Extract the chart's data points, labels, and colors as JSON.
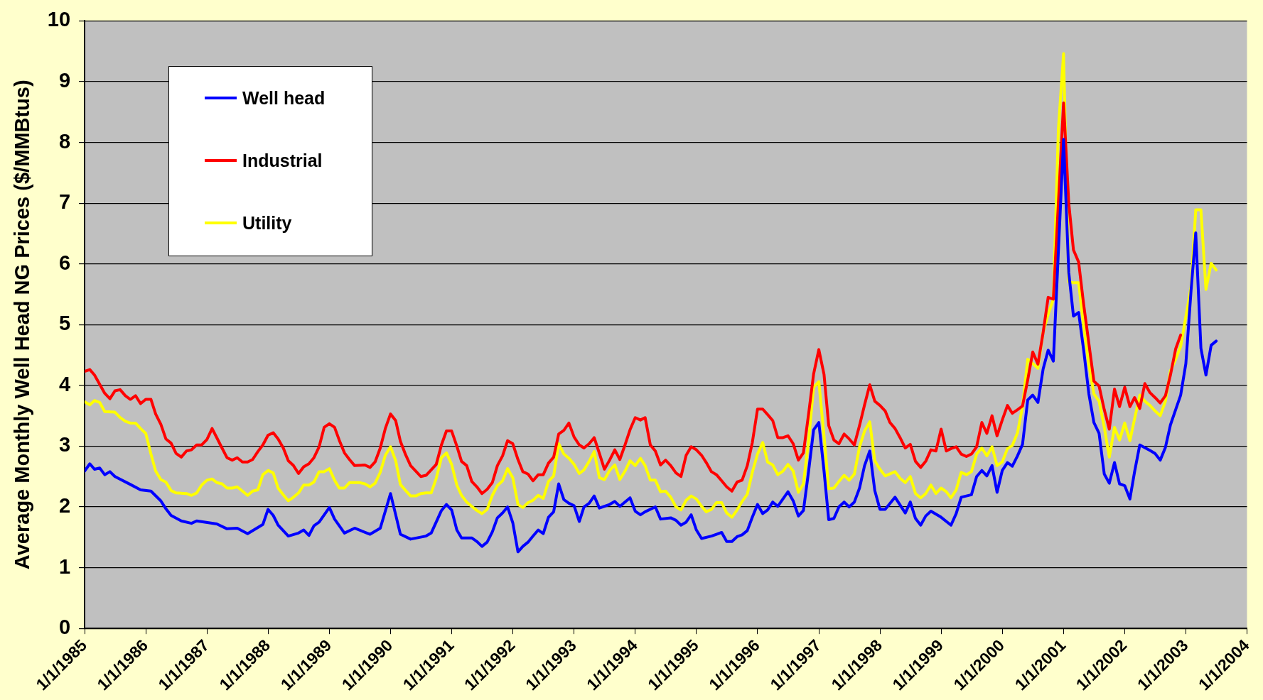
{
  "chart_data": {
    "type": "line",
    "ylabel": "Average Monthly Well Head NG Prices ($/MMBtus)",
    "xlim": [
      "1985-01-01",
      "2004-01-01"
    ],
    "xticks": [
      {
        "value": "1985-01-01",
        "label": "1/1/1985"
      },
      {
        "value": "1986-01-01",
        "label": "1/1/1986"
      },
      {
        "value": "1987-01-01",
        "label": "1/1/1987"
      },
      {
        "value": "1988-01-01",
        "label": "1/1/1988"
      },
      {
        "value": "1989-01-01",
        "label": "1/1/1989"
      },
      {
        "value": "1990-01-01",
        "label": "1/1/1990"
      },
      {
        "value": "1991-01-01",
        "label": "1/1/1991"
      },
      {
        "value": "1992-01-01",
        "label": "1/1/1992"
      },
      {
        "value": "1993-01-01",
        "label": "1/1/1993"
      },
      {
        "value": "1994-01-01",
        "label": "1/1/1994"
      },
      {
        "value": "1995-01-01",
        "label": "1/1/1995"
      },
      {
        "value": "1996-01-01",
        "label": "1/1/1996"
      },
      {
        "value": "1997-01-01",
        "label": "1/1/1997"
      },
      {
        "value": "1998-01-01",
        "label": "1/1/1998"
      },
      {
        "value": "1999-01-01",
        "label": "1/1/1999"
      },
      {
        "value": "2000-01-01",
        "label": "1/1/2000"
      },
      {
        "value": "2001-01-01",
        "label": "1/1/2001"
      },
      {
        "value": "2002-01-01",
        "label": "1/1/2002"
      },
      {
        "value": "2003-01-01",
        "label": "1/1/2003"
      },
      {
        "value": "2004-01-01",
        "label": "1/1/2004"
      }
    ],
    "ylim": [
      0,
      10
    ],
    "yticks": [
      0,
      1,
      2,
      3,
      4,
      5,
      6,
      7,
      8,
      9,
      10
    ],
    "grid": "y",
    "legend": "top left",
    "series": [
      {
        "name": "Well head",
        "color": "#0000ff",
        "x": [
          "1985-01",
          "1985-02",
          "1985-03",
          "1985-04",
          "1985-05",
          "1985-06",
          "1985-07",
          "1985-10",
          "1985-12",
          "1986-02",
          "1986-04",
          "1986-05",
          "1986-06",
          "1986-08",
          "1986-10",
          "1986-11",
          "1987-03",
          "1987-05",
          "1987-07",
          "1987-09",
          "1987-12",
          "1988-01",
          "1988-02",
          "1988-03",
          "1988-05",
          "1988-07",
          "1988-08",
          "1988-09",
          "1988-10",
          "1988-11",
          "1989-01",
          "1989-02",
          "1989-04",
          "1989-06",
          "1989-09",
          "1989-11",
          "1990-01",
          "1990-02",
          "1990-03",
          "1990-05",
          "1990-08",
          "1990-09",
          "1990-11",
          "1990-12",
          "1991-01",
          "1991-02",
          "1991-03",
          "1991-05",
          "1991-06",
          "1991-07",
          "1991-08",
          "1991-09",
          "1991-10",
          "1991-11",
          "1991-12",
          "1992-01",
          "1992-02",
          "1992-03",
          "1992-04",
          "1992-05",
          "1992-06",
          "1992-07",
          "1992-08",
          "1992-09",
          "1992-10",
          "1992-11",
          "1992-12",
          "1993-01",
          "1993-02",
          "1993-03",
          "1993-04",
          "1993-05",
          "1993-06",
          "1993-08",
          "1993-09",
          "1993-10",
          "1993-12",
          "1994-01",
          "1994-02",
          "1994-03",
          "1994-05",
          "1994-06",
          "1994-08",
          "1994-09",
          "1994-10",
          "1994-11",
          "1994-12",
          "1995-01",
          "1995-02",
          "1995-04",
          "1995-05",
          "1995-06",
          "1995-07",
          "1995-08",
          "1995-09",
          "1995-10",
          "1995-11",
          "1995-12",
          "1996-01",
          "1996-02",
          "1996-03",
          "1996-04",
          "1996-05",
          "1996-07",
          "1996-08",
          "1996-09",
          "1996-10",
          "1996-11",
          "1996-12",
          "1997-01",
          "1997-02",
          "1997-03",
          "1997-04",
          "1997-05",
          "1997-06",
          "1997-07",
          "1997-08",
          "1997-09",
          "1997-10",
          "1997-11",
          "1997-12",
          "1998-01",
          "1998-02",
          "1998-04",
          "1998-06",
          "1998-07",
          "1998-08",
          "1998-09",
          "1998-10",
          "1998-11",
          "1999-01",
          "1999-03",
          "1999-04",
          "1999-05",
          "1999-07",
          "1999-08",
          "1999-09",
          "1999-10",
          "1999-11",
          "1999-12",
          "2000-01",
          "2000-02",
          "2000-03",
          "2000-04",
          "2000-05",
          "2000-06",
          "2000-07",
          "2000-08",
          "2000-09",
          "2000-10",
          "2000-11",
          "2000-12",
          "2001-01",
          "2001-02",
          "2001-03",
          "2001-04",
          "2001-05",
          "2001-06",
          "2001-07",
          "2001-08",
          "2001-09",
          "2001-10",
          "2001-11",
          "2001-12",
          "2002-01",
          "2002-02",
          "2002-03",
          "2002-04",
          "2002-06",
          "2002-07",
          "2002-08",
          "2002-09",
          "2002-10",
          "2002-11",
          "2002-12",
          "2003-01",
          "2003-02",
          "2003-03",
          "2003-04",
          "2003-05",
          "2003-06",
          "2003-07"
        ],
        "values": [
          2.59,
          2.71,
          2.62,
          2.64,
          2.53,
          2.58,
          2.5,
          2.37,
          2.28,
          2.26,
          2.1,
          1.97,
          1.86,
          1.77,
          1.73,
          1.77,
          1.72,
          1.64,
          1.65,
          1.56,
          1.71,
          1.96,
          1.86,
          1.7,
          1.52,
          1.57,
          1.62,
          1.53,
          1.69,
          1.75,
          1.99,
          1.8,
          1.57,
          1.65,
          1.55,
          1.65,
          2.22,
          1.87,
          1.55,
          1.47,
          1.52,
          1.57,
          1.94,
          2.04,
          1.95,
          1.62,
          1.49,
          1.49,
          1.43,
          1.35,
          1.42,
          1.59,
          1.82,
          1.9,
          2.0,
          1.74,
          1.26,
          1.35,
          1.42,
          1.52,
          1.62,
          1.56,
          1.83,
          1.92,
          2.38,
          2.12,
          2.06,
          2.02,
          1.76,
          2.0,
          2.06,
          2.18,
          1.98,
          2.04,
          2.09,
          2.01,
          2.15,
          1.93,
          1.87,
          1.92,
          2.0,
          1.8,
          1.82,
          1.78,
          1.7,
          1.75,
          1.87,
          1.62,
          1.48,
          1.52,
          1.55,
          1.58,
          1.43,
          1.43,
          1.51,
          1.54,
          1.61,
          1.83,
          2.04,
          1.89,
          1.95,
          2.08,
          2.01,
          2.25,
          2.1,
          1.85,
          1.94,
          2.59,
          3.27,
          3.39,
          2.59,
          1.79,
          1.81,
          2.0,
          2.08,
          2.0,
          2.08,
          2.31,
          2.68,
          2.92,
          2.27,
          1.96,
          1.96,
          2.16,
          1.9,
          2.08,
          1.81,
          1.7,
          1.85,
          1.93,
          1.83,
          1.7,
          1.89,
          2.16,
          2.2,
          2.5,
          2.6,
          2.51,
          2.68,
          2.24,
          2.6,
          2.73,
          2.67,
          2.84,
          3.03,
          3.76,
          3.84,
          3.72,
          4.27,
          4.58,
          4.4,
          6.2,
          8.05,
          5.86,
          5.14,
          5.2,
          4.58,
          3.86,
          3.39,
          3.21,
          2.54,
          2.39,
          2.73,
          2.38,
          2.35,
          2.13,
          2.58,
          3.02,
          2.93,
          2.88,
          2.77,
          2.98,
          3.35,
          3.6,
          3.84,
          4.36,
          5.56,
          6.51,
          4.61,
          4.17,
          4.66,
          4.73
        ]
      },
      {
        "name": "Industrial",
        "color": "#ff0000",
        "x": [
          "1985-01",
          "1985-02",
          "1985-03",
          "1985-05",
          "1985-06",
          "1985-07",
          "1985-08",
          "1985-09",
          "1985-10",
          "1985-11",
          "1985-12",
          "1986-01",
          "1986-02",
          "1986-03",
          "1986-04",
          "1986-05",
          "1986-06",
          "1986-07",
          "1986-08",
          "1986-09",
          "1986-10",
          "1986-11",
          "1986-12",
          "1987-01",
          "1987-02",
          "1987-03",
          "1987-04",
          "1987-05",
          "1987-06",
          "1987-07",
          "1987-08",
          "1987-09",
          "1987-10",
          "1987-11",
          "1987-12",
          "1988-01",
          "1988-02",
          "1988-03",
          "1988-04",
          "1988-05",
          "1988-06",
          "1988-07",
          "1988-08",
          "1988-09",
          "1988-10",
          "1988-11",
          "1988-12",
          "1989-01",
          "1989-02",
          "1989-03",
          "1989-04",
          "1989-05",
          "1989-06",
          "1989-08",
          "1989-09",
          "1989-10",
          "1989-11",
          "1989-12",
          "1990-01",
          "1990-02",
          "1990-03",
          "1990-04",
          "1990-05",
          "1990-06",
          "1990-07",
          "1990-08",
          "1990-09",
          "1990-10",
          "1990-11",
          "1990-12",
          "1991-01",
          "1991-02",
          "1991-03",
          "1991-04",
          "1991-05",
          "1991-06",
          "1991-07",
          "1991-08",
          "1991-09",
          "1991-10",
          "1991-11",
          "1991-12",
          "1992-01",
          "1992-02",
          "1992-03",
          "1992-04",
          "1992-05",
          "1992-06",
          "1992-07",
          "1992-08",
          "1992-09",
          "1992-10",
          "1992-11",
          "1992-12",
          "1993-01",
          "1993-02",
          "1993-03",
          "1993-04",
          "1993-05",
          "1993-06",
          "1993-07",
          "1993-08",
          "1993-09",
          "1993-10",
          "1993-11",
          "1993-12",
          "1994-01",
          "1994-02",
          "1994-03",
          "1994-04",
          "1994-05",
          "1994-06",
          "1994-07",
          "1994-08",
          "1994-09",
          "1994-10",
          "1994-11",
          "1994-12",
          "1995-01",
          "1995-02",
          "1995-03",
          "1995-04",
          "1995-05",
          "1995-06",
          "1995-07",
          "1995-08",
          "1995-09",
          "1995-10",
          "1995-11",
          "1995-12",
          "1996-01",
          "1996-02",
          "1996-03",
          "1996-04",
          "1996-05",
          "1996-06",
          "1996-07",
          "1996-08",
          "1996-09",
          "1996-10",
          "1996-11",
          "1996-12",
          "1997-01",
          "1997-02",
          "1997-03",
          "1997-04",
          "1997-05",
          "1997-06",
          "1997-07",
          "1997-08",
          "1997-09",
          "1997-10",
          "1997-11",
          "1997-12",
          "1998-01",
          "1998-02",
          "1998-03",
          "1998-04",
          "1998-05",
          "1998-06",
          "1998-07",
          "1998-08",
          "1998-09",
          "1998-10",
          "1998-11",
          "1998-12",
          "1999-01",
          "1999-02",
          "1999-03",
          "1999-04",
          "1999-05",
          "1999-06",
          "1999-07",
          "1999-08",
          "1999-09",
          "1999-10",
          "1999-11",
          "1999-12",
          "2000-01",
          "2000-02",
          "2000-03",
          "2000-04",
          "2000-05",
          "2000-06",
          "2000-07",
          "2000-08",
          "2000-09",
          "2000-10",
          "2000-11",
          "2000-12",
          "2001-01",
          "2001-02",
          "2001-03",
          "2001-04",
          "2001-05",
          "2001-06",
          "2001-07",
          "2001-08",
          "2001-09",
          "2001-10",
          "2001-11",
          "2001-12",
          "2002-01",
          "2002-02",
          "2002-03",
          "2002-04",
          "2002-05",
          "2002-06",
          "2002-07",
          "2002-08",
          "2002-09",
          "2002-10",
          "2002-11",
          "2002-12"
        ],
        "values": [
          4.23,
          4.26,
          4.17,
          3.87,
          3.78,
          3.91,
          3.93,
          3.83,
          3.77,
          3.83,
          3.7,
          3.77,
          3.77,
          3.53,
          3.36,
          3.12,
          3.05,
          2.88,
          2.82,
          2.92,
          2.94,
          3.02,
          3.02,
          3.11,
          3.29,
          3.14,
          2.97,
          2.81,
          2.77,
          2.81,
          2.74,
          2.74,
          2.78,
          2.91,
          3.02,
          3.18,
          3.22,
          3.12,
          2.97,
          2.76,
          2.68,
          2.55,
          2.66,
          2.71,
          2.81,
          2.99,
          3.31,
          3.37,
          3.31,
          3.1,
          2.89,
          2.78,
          2.68,
          2.69,
          2.65,
          2.74,
          2.97,
          3.29,
          3.53,
          3.42,
          3.08,
          2.86,
          2.68,
          2.59,
          2.5,
          2.52,
          2.61,
          2.7,
          3.02,
          3.25,
          3.25,
          3.0,
          2.75,
          2.68,
          2.42,
          2.33,
          2.22,
          2.29,
          2.4,
          2.68,
          2.84,
          3.09,
          3.04,
          2.78,
          2.58,
          2.54,
          2.43,
          2.53,
          2.53,
          2.72,
          2.82,
          3.2,
          3.26,
          3.38,
          3.15,
          3.02,
          2.97,
          3.04,
          3.14,
          2.88,
          2.62,
          2.77,
          2.94,
          2.78,
          3.02,
          3.27,
          3.47,
          3.43,
          3.47,
          3.02,
          2.92,
          2.69,
          2.77,
          2.68,
          2.56,
          2.5,
          2.85,
          2.99,
          2.94,
          2.85,
          2.73,
          2.58,
          2.53,
          2.43,
          2.33,
          2.26,
          2.41,
          2.44,
          2.68,
          3.06,
          3.61,
          3.61,
          3.52,
          3.42,
          3.14,
          3.14,
          3.17,
          3.04,
          2.77,
          2.89,
          3.53,
          4.19,
          4.59,
          4.18,
          3.34,
          3.1,
          3.04,
          3.2,
          3.12,
          3.02,
          3.34,
          3.68,
          4.01,
          3.74,
          3.67,
          3.58,
          3.39,
          3.29,
          3.14,
          2.97,
          3.03,
          2.75,
          2.65,
          2.75,
          2.94,
          2.92,
          3.28,
          2.92,
          2.96,
          2.99,
          2.87,
          2.83,
          2.87,
          2.99,
          3.39,
          3.21,
          3.5,
          3.17,
          3.43,
          3.67,
          3.54,
          3.6,
          3.66,
          4.09,
          4.55,
          4.35,
          4.87,
          5.45,
          5.42,
          7.0,
          8.65,
          7.0,
          6.23,
          6.03,
          5.33,
          4.69,
          4.07,
          3.99,
          3.6,
          3.28,
          3.94,
          3.65,
          3.97,
          3.65,
          3.8,
          3.62,
          4.03,
          3.88,
          3.8,
          3.71,
          3.83,
          4.17,
          4.6,
          4.83
        ]
      },
      {
        "name": "Utility",
        "color": "#ffff00",
        "x": [
          "1985-01",
          "1985-02",
          "1985-03",
          "1985-04",
          "1985-05",
          "1985-07",
          "1985-08",
          "1985-09",
          "1985-10",
          "1985-11",
          "1985-12",
          "1986-01",
          "1986-02",
          "1986-03",
          "1986-04",
          "1986-05",
          "1986-06",
          "1986-07",
          "1986-09",
          "1986-10",
          "1986-11",
          "1986-12",
          "1987-01",
          "1987-02",
          "1987-03",
          "1987-04",
          "1987-05",
          "1987-06",
          "1987-07",
          "1987-08",
          "1987-09",
          "1987-10",
          "1987-11",
          "1987-12",
          "1988-01",
          "1988-02",
          "1988-03",
          "1988-04",
          "1988-05",
          "1988-06",
          "1988-07",
          "1988-08",
          "1988-09",
          "1988-10",
          "1988-11",
          "1988-12",
          "1989-01",
          "1989-02",
          "1989-03",
          "1989-04",
          "1989-05",
          "1989-07",
          "1989-08",
          "1989-09",
          "1989-10",
          "1989-11",
          "1989-12",
          "1990-01",
          "1990-02",
          "1990-03",
          "1990-04",
          "1990-05",
          "1990-06",
          "1990-07",
          "1990-08",
          "1990-09",
          "1990-10",
          "1990-11",
          "1990-12",
          "1991-01",
          "1991-02",
          "1991-03",
          "1991-04",
          "1991-05",
          "1991-06",
          "1991-07",
          "1991-08",
          "1991-09",
          "1991-10",
          "1991-11",
          "1991-12",
          "1992-01",
          "1992-02",
          "1992-03",
          "1992-04",
          "1992-05",
          "1992-06",
          "1992-07",
          "1992-08",
          "1992-09",
          "1992-10",
          "1992-11",
          "1992-12",
          "1993-01",
          "1993-02",
          "1993-03",
          "1993-04",
          "1993-05",
          "1993-06",
          "1993-07",
          "1993-08",
          "1993-09",
          "1993-10",
          "1993-11",
          "1993-12",
          "1994-01",
          "1994-02",
          "1994-03",
          "1994-04",
          "1994-05",
          "1994-06",
          "1994-07",
          "1994-08",
          "1994-09",
          "1994-10",
          "1994-11",
          "1994-12",
          "1995-01",
          "1995-02",
          "1995-03",
          "1995-04",
          "1995-05",
          "1995-06",
          "1995-07",
          "1995-08",
          "1995-09",
          "1995-10",
          "1995-11",
          "1995-12",
          "1996-01",
          "1996-02",
          "1996-03",
          "1996-04",
          "1996-05",
          "1996-06",
          "1996-07",
          "1996-08",
          "1996-09",
          "1996-10",
          "1996-11",
          "1996-12",
          "1997-01",
          "1997-02",
          "1997-03",
          "1997-04",
          "1997-05",
          "1997-06",
          "1997-07",
          "1997-08",
          "1997-09",
          "1997-10",
          "1997-11",
          "1997-12",
          "1998-01",
          "1998-02",
          "1998-04",
          "1998-05",
          "1998-06",
          "1998-07",
          "1998-08",
          "1998-09",
          "1998-10",
          "1998-11",
          "1998-12",
          "1999-01",
          "1999-02",
          "1999-03",
          "1999-04",
          "1999-05",
          "1999-06",
          "1999-07",
          "1999-08",
          "1999-09",
          "1999-10",
          "1999-11",
          "1999-12",
          "2000-01",
          "2000-02",
          "2000-03",
          "2000-04",
          "2000-05",
          "2000-06",
          "2000-07",
          "2000-08",
          "2000-09",
          "2000-10",
          "2000-11",
          "2000-12",
          "2001-01",
          "2001-02",
          "2001-03",
          "2001-04",
          "2001-05",
          "2001-06",
          "2001-07",
          "2001-08",
          "2001-09",
          "2001-10",
          "2001-11",
          "2001-12",
          "2002-01",
          "2002-02",
          "2002-03",
          "2002-04",
          "2002-05",
          "2002-06",
          "2002-07",
          "2002-08",
          "2002-09",
          "2002-10",
          "2002-11",
          "2002-12",
          "2003-01",
          "2003-02",
          "2003-03",
          "2003-04",
          "2003-05",
          "2003-06",
          "2003-07"
        ],
        "values": [
          3.73,
          3.68,
          3.75,
          3.72,
          3.57,
          3.56,
          3.47,
          3.41,
          3.38,
          3.38,
          3.29,
          3.21,
          2.87,
          2.59,
          2.45,
          2.41,
          2.27,
          2.23,
          2.22,
          2.19,
          2.23,
          2.36,
          2.44,
          2.46,
          2.4,
          2.38,
          2.31,
          2.31,
          2.33,
          2.26,
          2.19,
          2.26,
          2.28,
          2.53,
          2.6,
          2.56,
          2.31,
          2.2,
          2.1,
          2.16,
          2.23,
          2.36,
          2.36,
          2.41,
          2.58,
          2.58,
          2.63,
          2.44,
          2.31,
          2.31,
          2.4,
          2.4,
          2.38,
          2.33,
          2.39,
          2.57,
          2.85,
          2.99,
          2.76,
          2.37,
          2.27,
          2.18,
          2.18,
          2.22,
          2.23,
          2.23,
          2.47,
          2.81,
          2.89,
          2.7,
          2.36,
          2.19,
          2.08,
          2.01,
          1.94,
          1.89,
          1.96,
          2.19,
          2.35,
          2.43,
          2.63,
          2.48,
          2.04,
          1.99,
          2.07,
          2.11,
          2.19,
          2.14,
          2.42,
          2.51,
          3.04,
          2.87,
          2.8,
          2.7,
          2.55,
          2.61,
          2.75,
          2.91,
          2.48,
          2.45,
          2.6,
          2.69,
          2.45,
          2.59,
          2.76,
          2.68,
          2.8,
          2.68,
          2.44,
          2.44,
          2.25,
          2.26,
          2.16,
          2.0,
          1.95,
          2.11,
          2.18,
          2.13,
          2.01,
          1.92,
          1.96,
          2.07,
          2.07,
          1.9,
          1.83,
          1.95,
          2.09,
          2.21,
          2.57,
          2.87,
          3.06,
          2.74,
          2.69,
          2.53,
          2.59,
          2.7,
          2.59,
          2.24,
          2.38,
          3.1,
          3.97,
          4.06,
          3.17,
          2.3,
          2.31,
          2.42,
          2.52,
          2.44,
          2.54,
          2.99,
          3.25,
          3.4,
          2.76,
          2.62,
          2.51,
          2.58,
          2.47,
          2.4,
          2.5,
          2.22,
          2.15,
          2.22,
          2.36,
          2.22,
          2.31,
          2.25,
          2.15,
          2.28,
          2.57,
          2.53,
          2.58,
          2.87,
          2.97,
          2.84,
          2.99,
          2.68,
          2.74,
          2.96,
          3.01,
          3.22,
          3.65,
          4.43,
          4.36,
          4.28,
          4.88,
          5.17,
          5.42,
          8.22,
          9.46,
          5.7,
          5.69,
          5.69,
          4.98,
          4.35,
          3.86,
          3.74,
          3.31,
          2.82,
          3.31,
          3.1,
          3.38,
          3.09,
          3.45,
          3.84,
          3.74,
          3.67,
          3.58,
          3.5,
          3.74,
          4.24,
          4.43,
          4.64,
          5.13,
          5.62,
          6.89,
          6.89,
          5.58,
          6.01,
          5.9
        ]
      }
    ]
  }
}
